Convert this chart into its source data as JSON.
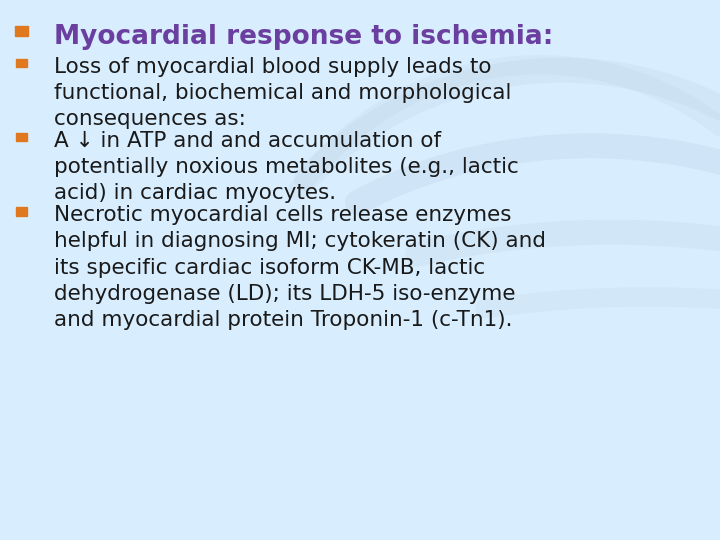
{
  "background_color": "#d8eeff",
  "bullet_color_title": "#e07820",
  "title_text": "Myocardial response to ischemia:",
  "title_color": "#6b3fa0",
  "body_color": "#1a1a1a",
  "title_fontsize": 19,
  "body_fontsize": 15.5,
  "items": [
    {
      "text": "Loss of myocardial blood supply leads to\nfunctional, biochemical and morphological\nconsequences as:",
      "bullet_color": "#e07820",
      "n_lines": 3
    },
    {
      "text": "A ↓ in ATP and and accumulation of\npotentially noxious metabolites (e.g., lactic\nacid) in cardiac myocytes.",
      "bullet_color": "#e07820",
      "n_lines": 3
    },
    {
      "text": "Necrotic myocardial cells release enzymes\nhelpful in diagnosing MI; cytokeratin (CK) and\nits specific cardiac isoform CK-MB, lactic\ndehydrogenase (LD); its LDH-5 iso-enzyme\nand myocardial protein Troponin-1 (c-Tn1).",
      "bullet_color": "#e07820",
      "n_lines": 5
    }
  ],
  "watermark_color": "#b8cde0",
  "figsize": [
    7.2,
    5.4
  ],
  "dpi": 100
}
